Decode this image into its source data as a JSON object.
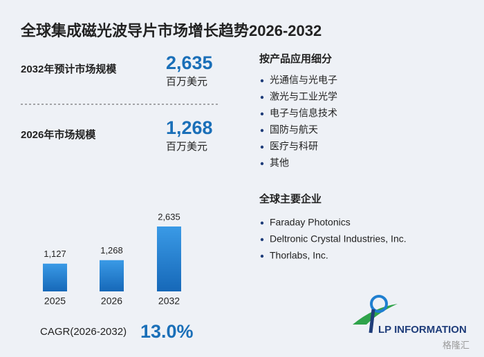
{
  "title": "全球集成磁光波导片市场增长趋势2026-2032",
  "stats": [
    {
      "label": "2032年预计市场规模",
      "value": "2,635",
      "unit": "百万美元"
    },
    {
      "label": "2026年市场规模",
      "value": "1,268",
      "unit": "百万美元"
    }
  ],
  "cagr": {
    "label": "CAGR(2026-2032)",
    "value": "13.0%"
  },
  "segments": {
    "heading": "按产品应用细分",
    "items": [
      "光通信与光电子",
      "激光与工业光学",
      "电子与信息技术",
      "国防与航天",
      "医疗与科研",
      "其他"
    ]
  },
  "companies": {
    "heading": "全球主要企业",
    "items": [
      "Faraday Photonics",
      "Deltronic Crystal Industries, Inc.",
      "Thorlabs, Inc."
    ]
  },
  "logo": "LP INFORMATION",
  "watermark": "格隆汇",
  "chart_data": {
    "type": "bar",
    "categories": [
      "2025",
      "2026",
      "2032"
    ],
    "values": [
      1127,
      1268,
      2635
    ],
    "value_labels": [
      "1,127",
      "1,268",
      "2,635"
    ],
    "color": "#1f7fd0"
  }
}
